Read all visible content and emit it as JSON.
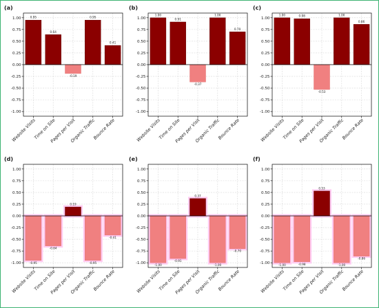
{
  "chart_data": [
    {
      "panel_label": "(a)",
      "type": "bar",
      "categories": [
        "Website Visits",
        "Time on Site",
        "Pages per Visit",
        "Organic Traffic",
        "Bounce Rate"
      ],
      "values": [
        0.95,
        0.64,
        -0.19,
        0.95,
        0.41
      ],
      "data_labels": [
        "0.95",
        "0.64",
        "-0.19",
        "0.95",
        "0.41"
      ],
      "ylim": [
        -1.1,
        1.1
      ],
      "yticks": [
        "1.00",
        "0.75",
        "0.50",
        "0.25",
        "0.00",
        "-0.25",
        "-0.50",
        "-0.75",
        "-1.00"
      ],
      "grid": true,
      "xlabel": "",
      "ylabel": "",
      "title": "",
      "highlight": false
    },
    {
      "panel_label": "(b)",
      "type": "bar",
      "categories": [
        "Website Visits",
        "Time on Site",
        "Pages per Visit",
        "Organic Traffic",
        "Bounce Rate"
      ],
      "values": [
        1.0,
        0.91,
        -0.37,
        1.0,
        0.7
      ],
      "data_labels": [
        "1.00",
        "0.91",
        "-0.37",
        "1.00",
        "0.70"
      ],
      "ylim": [
        -1.1,
        1.1
      ],
      "yticks": [
        "1.00",
        "0.75",
        "0.50",
        "0.25",
        "0.00",
        "-0.25",
        "-0.50",
        "-0.75",
        "-1.00"
      ],
      "grid": true,
      "xlabel": "",
      "ylabel": "",
      "title": "",
      "highlight": false
    },
    {
      "panel_label": "(c)",
      "type": "bar",
      "categories": [
        "Website Visits",
        "Time on Site",
        "Pages per Visit",
        "Organic Traffic",
        "Bounce Rate"
      ],
      "values": [
        1.0,
        0.98,
        -0.53,
        1.0,
        0.86
      ],
      "data_labels": [
        "1.00",
        "0.98",
        "-0.53",
        "1.00",
        "0.86"
      ],
      "ylim": [
        -1.1,
        1.1
      ],
      "yticks": [
        "1.00",
        "0.75",
        "0.50",
        "0.25",
        "0.00",
        "-0.25",
        "-0.50",
        "-0.75",
        "-1.00"
      ],
      "grid": true,
      "xlabel": "",
      "ylabel": "",
      "title": "",
      "highlight": false
    },
    {
      "panel_label": "(d)",
      "type": "bar",
      "categories": [
        "Website Visits",
        "Time on Site",
        "Pages per Visit",
        "Organic Traffic",
        "Bounce Rate"
      ],
      "values": [
        -0.95,
        -0.64,
        0.19,
        -0.95,
        -0.41
      ],
      "data_labels": [
        "-0.95",
        "-0.64",
        "0.19",
        "-0.95",
        "-0.41"
      ],
      "ylim": [
        -1.1,
        1.1
      ],
      "yticks": [
        "1.00",
        "0.75",
        "0.50",
        "0.25",
        "0.00",
        "-0.25",
        "-0.50",
        "-0.75",
        "-1.00"
      ],
      "grid": true,
      "xlabel": "",
      "ylabel": "",
      "title": "",
      "highlight": true
    },
    {
      "panel_label": "(e)",
      "type": "bar",
      "categories": [
        "Website Visits",
        "Time on Site",
        "Pages per Visit",
        "Organic Traffic",
        "Bounce Rate"
      ],
      "values": [
        -1.0,
        -0.91,
        0.37,
        -1.0,
        -0.7
      ],
      "data_labels": [
        "-1.00",
        "-0.91",
        "0.37",
        "-1.00",
        "-0.70"
      ],
      "ylim": [
        -1.1,
        1.1
      ],
      "yticks": [
        "1.00",
        "0.75",
        "0.50",
        "0.25",
        "0.00",
        "-0.25",
        "-0.50",
        "-0.75",
        "-1.00"
      ],
      "grid": true,
      "xlabel": "",
      "ylabel": "",
      "title": "",
      "highlight": true
    },
    {
      "panel_label": "(f)",
      "type": "bar",
      "categories": [
        "Website Visits",
        "Time on Site",
        "Pages per Visit",
        "Organic Traffic",
        "Bounce Rate"
      ],
      "values": [
        -1.0,
        -0.98,
        0.53,
        -1.0,
        -0.86
      ],
      "data_labels": [
        "-1.00",
        "-0.98",
        "0.53",
        "-1.00",
        "-0.86"
      ],
      "ylim": [
        -1.1,
        1.1
      ],
      "yticks": [
        "1.00",
        "0.75",
        "0.50",
        "0.25",
        "0.00",
        "-0.25",
        "-0.50",
        "-0.75",
        "-1.00"
      ],
      "grid": true,
      "xlabel": "",
      "ylabel": "",
      "title": "",
      "highlight": true
    }
  ],
  "colors": {
    "positive_bar": "#8b0000",
    "negative_bar": "#f08080",
    "highlight": "#ffccf2",
    "border": "#3cb371",
    "grid": "#d8d8d8"
  }
}
